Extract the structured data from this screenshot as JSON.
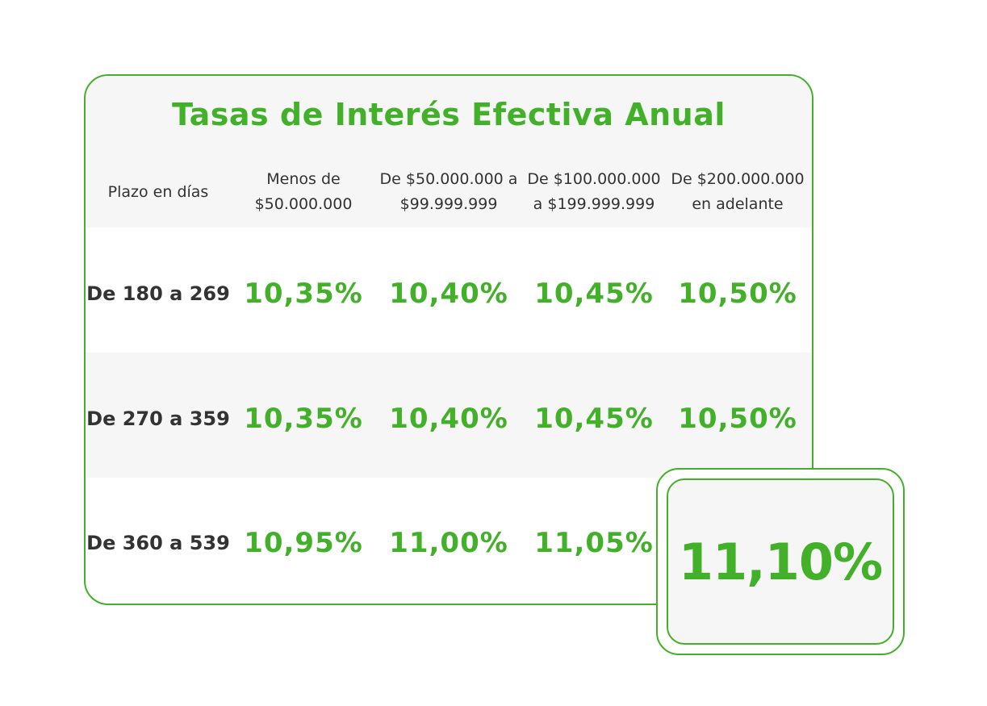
{
  "title": "Tasas de Interés Efectiva Anual",
  "columns": [
    "Plazo en días",
    "Menos de $50.000.000",
    "De $50.000.000 a $99.999.999",
    "De $100.000.000 a $199.999.999",
    "De $200.000.000 en adelante"
  ],
  "rows": [
    {
      "label": "De 180 a 269",
      "values": [
        "10,35%",
        "10,40%",
        "10,45%",
        "10,50%"
      ]
    },
    {
      "label": "De 270 a 359",
      "values": [
        "10,35%",
        "10,40%",
        "10,45%",
        "10,50%"
      ]
    },
    {
      "label": "De 360 a 539",
      "values": [
        "10,95%",
        "11,00%",
        "11,05%",
        "11,10%"
      ]
    }
  ],
  "highlight": "11,10%",
  "colors": {
    "accent": "#43b02a",
    "text": "#333333",
    "band": "#f6f6f6"
  }
}
